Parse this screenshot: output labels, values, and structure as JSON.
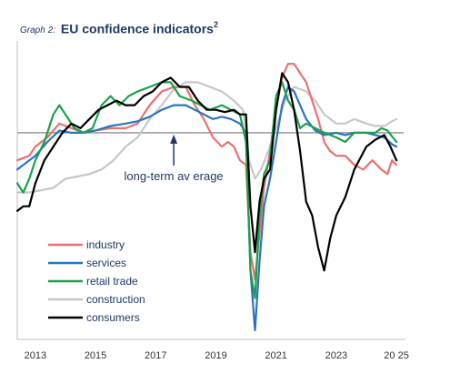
{
  "title": {
    "graph_no": "Graph 2:",
    "text": "EU confidence indicators",
    "superscript": "2"
  },
  "chart_data": {
    "type": "line",
    "xlim": [
      2012.4,
      2025.3
    ],
    "ylim": [
      -4.5,
      2.0
    ],
    "grid": false,
    "legend_position": "bottom-left",
    "reference_line": {
      "y": 0,
      "color": "#999999"
    },
    "annotation": {
      "text": "long-term av erage",
      "x": 2017.6,
      "y": 0
    },
    "x_ticks": [
      {
        "value": 2013,
        "label": "2013"
      },
      {
        "value": 2015,
        "label": "2015"
      },
      {
        "value": 2017,
        "label": "2017"
      },
      {
        "value": 2019,
        "label": "2019"
      },
      {
        "value": 2021,
        "label": "2021"
      },
      {
        "value": 2023,
        "label": "2023"
      },
      {
        "value": 2025,
        "label": "20 25"
      }
    ],
    "series": [
      {
        "name": "industry",
        "color": "#e8716f",
        "points": [
          [
            2012.4,
            -0.6
          ],
          [
            2012.8,
            -0.5
          ],
          [
            2013.0,
            -0.3
          ],
          [
            2013.4,
            -0.1
          ],
          [
            2013.8,
            0.2
          ],
          [
            2014.2,
            0.1
          ],
          [
            2014.6,
            0.0
          ],
          [
            2015.0,
            0.05
          ],
          [
            2015.5,
            0.1
          ],
          [
            2016.0,
            0.1
          ],
          [
            2016.4,
            0.2
          ],
          [
            2016.8,
            0.6
          ],
          [
            2017.2,
            0.9
          ],
          [
            2017.6,
            1.0
          ],
          [
            2018.0,
            1.0
          ],
          [
            2018.3,
            0.6
          ],
          [
            2018.6,
            0.3
          ],
          [
            2018.9,
            -0.1
          ],
          [
            2019.2,
            -0.3
          ],
          [
            2019.4,
            -0.2
          ],
          [
            2019.6,
            -0.3
          ],
          [
            2019.8,
            -0.6
          ],
          [
            2020.0,
            -0.7
          ],
          [
            2020.15,
            -2.6
          ],
          [
            2020.3,
            -3.2
          ],
          [
            2020.45,
            -2.2
          ],
          [
            2020.6,
            -1.2
          ],
          [
            2020.8,
            -0.4
          ],
          [
            2021.0,
            0.5
          ],
          [
            2021.2,
            1.2
          ],
          [
            2021.4,
            1.5
          ],
          [
            2021.6,
            1.5
          ],
          [
            2021.8,
            1.3
          ],
          [
            2022.0,
            1.1
          ],
          [
            2022.2,
            0.7
          ],
          [
            2022.4,
            0.3
          ],
          [
            2022.6,
            -0.2
          ],
          [
            2022.8,
            -0.4
          ],
          [
            2023.0,
            -0.5
          ],
          [
            2023.3,
            -0.5
          ],
          [
            2023.6,
            -0.7
          ],
          [
            2023.9,
            -0.8
          ],
          [
            2024.2,
            -0.6
          ],
          [
            2024.5,
            -0.8
          ],
          [
            2024.7,
            -0.9
          ],
          [
            2024.85,
            -0.6
          ],
          [
            2025.0,
            -0.7
          ]
        ]
      },
      {
        "name": "services",
        "color": "#2a74bf",
        "points": [
          [
            2012.4,
            -0.8
          ],
          [
            2012.8,
            -0.6
          ],
          [
            2013.0,
            -0.5
          ],
          [
            2013.4,
            -0.2
          ],
          [
            2013.8,
            0.05
          ],
          [
            2014.2,
            0.0
          ],
          [
            2014.6,
            0.0
          ],
          [
            2015.0,
            0.05
          ],
          [
            2015.5,
            0.15
          ],
          [
            2016.0,
            0.2
          ],
          [
            2016.4,
            0.25
          ],
          [
            2016.8,
            0.35
          ],
          [
            2017.2,
            0.5
          ],
          [
            2017.6,
            0.6
          ],
          [
            2018.0,
            0.6
          ],
          [
            2018.3,
            0.5
          ],
          [
            2018.6,
            0.4
          ],
          [
            2018.9,
            0.3
          ],
          [
            2019.2,
            0.35
          ],
          [
            2019.5,
            0.3
          ],
          [
            2019.8,
            0.2
          ],
          [
            2020.0,
            0.0
          ],
          [
            2020.15,
            -3.0
          ],
          [
            2020.3,
            -4.3
          ],
          [
            2020.45,
            -2.8
          ],
          [
            2020.6,
            -1.6
          ],
          [
            2020.8,
            -1.0
          ],
          [
            2021.0,
            -0.2
          ],
          [
            2021.2,
            0.6
          ],
          [
            2021.4,
            1.0
          ],
          [
            2021.6,
            0.9
          ],
          [
            2021.8,
            0.6
          ],
          [
            2022.0,
            0.3
          ],
          [
            2022.3,
            0.05
          ],
          [
            2022.6,
            -0.05
          ],
          [
            2023.0,
            0.0
          ],
          [
            2023.3,
            -0.05
          ],
          [
            2023.6,
            0.0
          ],
          [
            2024.0,
            0.0
          ],
          [
            2024.3,
            -0.05
          ],
          [
            2024.6,
            -0.1
          ],
          [
            2024.85,
            -0.25
          ],
          [
            2025.0,
            -0.3
          ]
        ]
      },
      {
        "name": "retail trade",
        "color": "#19a34a",
        "points": [
          [
            2012.4,
            -1.1
          ],
          [
            2012.6,
            -1.3
          ],
          [
            2012.8,
            -1.0
          ],
          [
            2013.0,
            -0.6
          ],
          [
            2013.3,
            -0.2
          ],
          [
            2013.6,
            0.4
          ],
          [
            2013.8,
            0.6
          ],
          [
            2014.0,
            0.4
          ],
          [
            2014.3,
            0.1
          ],
          [
            2014.6,
            0.0
          ],
          [
            2014.9,
            0.1
          ],
          [
            2015.2,
            0.6
          ],
          [
            2015.5,
            0.8
          ],
          [
            2015.8,
            0.6
          ],
          [
            2016.1,
            0.8
          ],
          [
            2016.4,
            0.9
          ],
          [
            2016.8,
            1.0
          ],
          [
            2017.2,
            1.1
          ],
          [
            2017.5,
            1.1
          ],
          [
            2017.8,
            0.8
          ],
          [
            2018.2,
            0.7
          ],
          [
            2018.5,
            0.6
          ],
          [
            2018.8,
            0.5
          ],
          [
            2019.2,
            0.6
          ],
          [
            2019.5,
            0.5
          ],
          [
            2019.8,
            0.4
          ],
          [
            2020.0,
            -0.2
          ],
          [
            2020.15,
            -3.0
          ],
          [
            2020.3,
            -3.6
          ],
          [
            2020.45,
            -1.8
          ],
          [
            2020.6,
            -0.9
          ],
          [
            2020.8,
            -0.6
          ],
          [
            2021.0,
            0.8
          ],
          [
            2021.2,
            1.1
          ],
          [
            2021.4,
            0.7
          ],
          [
            2021.6,
            0.5
          ],
          [
            2021.8,
            0.1
          ],
          [
            2022.0,
            0.2
          ],
          [
            2022.3,
            0.1
          ],
          [
            2022.6,
            0.0
          ],
          [
            2023.0,
            -0.1
          ],
          [
            2023.3,
            -0.2
          ],
          [
            2023.6,
            0.0
          ],
          [
            2024.0,
            0.0
          ],
          [
            2024.3,
            0.0
          ],
          [
            2024.5,
            0.1
          ],
          [
            2024.7,
            0.05
          ],
          [
            2025.0,
            -0.2
          ]
        ]
      },
      {
        "name": "construction",
        "color": "#c8c8c8",
        "points": [
          [
            2012.4,
            -1.3
          ],
          [
            2012.8,
            -1.3
          ],
          [
            2013.2,
            -1.25
          ],
          [
            2013.6,
            -1.2
          ],
          [
            2014.0,
            -1.0
          ],
          [
            2014.4,
            -0.95
          ],
          [
            2014.8,
            -0.9
          ],
          [
            2015.2,
            -0.8
          ],
          [
            2015.6,
            -0.6
          ],
          [
            2016.0,
            -0.3
          ],
          [
            2016.4,
            -0.1
          ],
          [
            2016.8,
            0.3
          ],
          [
            2017.2,
            0.6
          ],
          [
            2017.6,
            0.95
          ],
          [
            2018.0,
            1.1
          ],
          [
            2018.4,
            1.1
          ],
          [
            2018.8,
            1.0
          ],
          [
            2019.2,
            0.9
          ],
          [
            2019.6,
            0.7
          ],
          [
            2019.9,
            0.5
          ],
          [
            2020.1,
            -0.6
          ],
          [
            2020.3,
            -1.0
          ],
          [
            2020.5,
            -0.8
          ],
          [
            2020.8,
            -0.3
          ],
          [
            2021.0,
            0.1
          ],
          [
            2021.3,
            0.7
          ],
          [
            2021.6,
            1.0
          ],
          [
            2022.0,
            0.9
          ],
          [
            2022.3,
            0.7
          ],
          [
            2022.6,
            0.4
          ],
          [
            2023.0,
            0.2
          ],
          [
            2023.3,
            0.2
          ],
          [
            2023.6,
            0.3
          ],
          [
            2024.0,
            0.2
          ],
          [
            2024.3,
            0.15
          ],
          [
            2024.6,
            0.15
          ],
          [
            2024.85,
            0.25
          ],
          [
            2025.0,
            0.3
          ]
        ]
      },
      {
        "name": "consumers",
        "color": "#000000",
        "points": [
          [
            2012.4,
            -1.7
          ],
          [
            2012.6,
            -1.6
          ],
          [
            2012.8,
            -1.6
          ],
          [
            2013.0,
            -1.1
          ],
          [
            2013.3,
            -0.6
          ],
          [
            2013.6,
            -0.3
          ],
          [
            2013.9,
            0.0
          ],
          [
            2014.2,
            0.2
          ],
          [
            2014.5,
            0.1
          ],
          [
            2014.8,
            0.3
          ],
          [
            2015.1,
            0.5
          ],
          [
            2015.4,
            0.6
          ],
          [
            2015.7,
            0.7
          ],
          [
            2016.0,
            0.6
          ],
          [
            2016.3,
            0.6
          ],
          [
            2016.6,
            0.8
          ],
          [
            2016.9,
            0.9
          ],
          [
            2017.2,
            1.1
          ],
          [
            2017.5,
            1.2
          ],
          [
            2017.8,
            1.0
          ],
          [
            2018.1,
            1.0
          ],
          [
            2018.4,
            0.7
          ],
          [
            2018.7,
            0.5
          ],
          [
            2019.0,
            0.5
          ],
          [
            2019.3,
            0.45
          ],
          [
            2019.6,
            0.5
          ],
          [
            2019.8,
            0.4
          ],
          [
            2020.0,
            0.4
          ],
          [
            2020.15,
            -1.6
          ],
          [
            2020.3,
            -2.6
          ],
          [
            2020.45,
            -1.5
          ],
          [
            2020.6,
            -1.0
          ],
          [
            2020.8,
            -0.8
          ],
          [
            2021.0,
            0.5
          ],
          [
            2021.2,
            1.3
          ],
          [
            2021.4,
            1.1
          ],
          [
            2021.6,
            0.5
          ],
          [
            2021.8,
            -0.4
          ],
          [
            2022.0,
            -1.5
          ],
          [
            2022.2,
            -1.8
          ],
          [
            2022.4,
            -2.5
          ],
          [
            2022.6,
            -3.0
          ],
          [
            2022.8,
            -2.3
          ],
          [
            2023.0,
            -1.8
          ],
          [
            2023.3,
            -1.4
          ],
          [
            2023.6,
            -0.8
          ],
          [
            2024.0,
            -0.3
          ],
          [
            2024.3,
            -0.15
          ],
          [
            2024.6,
            -0.05
          ],
          [
            2024.8,
            -0.3
          ],
          [
            2025.0,
            -0.6
          ]
        ]
      }
    ]
  }
}
